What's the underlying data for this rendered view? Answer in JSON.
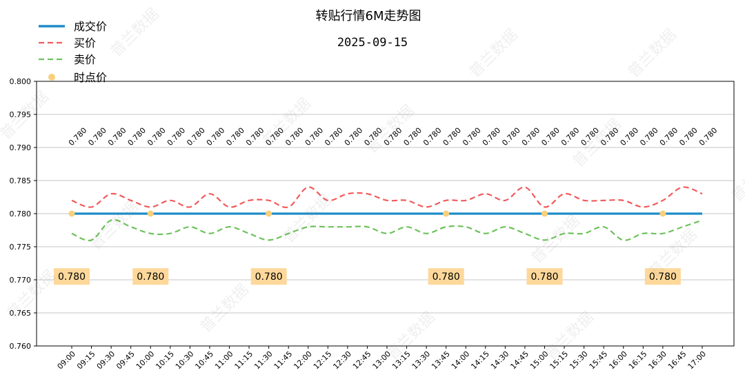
{
  "chart_data": {
    "type": "line",
    "title": "转贴行情6M走势图",
    "subtitle": "2025-09-15",
    "ylim": [
      0.76,
      0.8
    ],
    "yticks": [
      "0.760",
      "0.765",
      "0.770",
      "0.775",
      "0.780",
      "0.785",
      "0.790",
      "0.795",
      "0.800"
    ],
    "grid": true,
    "legend_position": "top-left",
    "categories": [
      "09:00",
      "09:15",
      "09:30",
      "09:45",
      "10:00",
      "10:15",
      "10:30",
      "10:45",
      "11:00",
      "11:15",
      "11:30",
      "11:45",
      "12:00",
      "12:15",
      "12:30",
      "12:45",
      "13:00",
      "13:15",
      "13:30",
      "13:45",
      "14:00",
      "14:15",
      "14:30",
      "14:45",
      "15:00",
      "15:15",
      "15:30",
      "15:45",
      "16:00",
      "16:15",
      "16:30",
      "16:45",
      "17:00"
    ],
    "series": [
      {
        "name": "成交价",
        "style": "solid",
        "color": "#1f8cc8",
        "values": [
          0.78,
          0.78,
          0.78,
          0.78,
          0.78,
          0.78,
          0.78,
          0.78,
          0.78,
          0.78,
          0.78,
          0.78,
          0.78,
          0.78,
          0.78,
          0.78,
          0.78,
          0.78,
          0.78,
          0.78,
          0.78,
          0.78,
          0.78,
          0.78,
          0.78,
          0.78,
          0.78,
          0.78,
          0.78,
          0.78,
          0.78,
          0.78,
          0.78
        ]
      },
      {
        "name": "买价",
        "style": "dashed",
        "color": "#f15a5a",
        "values": [
          0.782,
          0.781,
          0.783,
          0.782,
          0.781,
          0.782,
          0.781,
          0.783,
          0.781,
          0.782,
          0.782,
          0.781,
          0.784,
          0.782,
          0.783,
          0.783,
          0.782,
          0.782,
          0.781,
          0.782,
          0.782,
          0.783,
          0.782,
          0.784,
          0.781,
          0.783,
          0.782,
          0.782,
          0.782,
          0.781,
          0.782,
          0.784,
          0.783
        ]
      },
      {
        "name": "卖价",
        "style": "dashed",
        "color": "#6cc25a",
        "values": [
          0.777,
          0.776,
          0.779,
          0.778,
          0.777,
          0.777,
          0.778,
          0.777,
          0.778,
          0.777,
          0.776,
          0.777,
          0.778,
          0.778,
          0.778,
          0.778,
          0.777,
          0.778,
          0.777,
          0.778,
          0.778,
          0.777,
          0.778,
          0.777,
          0.776,
          0.777,
          0.777,
          0.778,
          0.776,
          0.777,
          0.777,
          0.778,
          0.779
        ]
      },
      {
        "name": "时点价",
        "style": "marker",
        "color": "#f8d07a",
        "points": [
          {
            "category": "09:00",
            "value": 0.78,
            "label": "0.780"
          },
          {
            "category": "10:00",
            "value": 0.78,
            "label": "0.780"
          },
          {
            "category": "11:30",
            "value": 0.78,
            "label": "0.780"
          },
          {
            "category": "13:45",
            "value": 0.78,
            "label": "0.780"
          },
          {
            "category": "15:00",
            "value": 0.78,
            "label": "0.780"
          },
          {
            "category": "16:30",
            "value": 0.78,
            "label": "0.780"
          }
        ]
      }
    ],
    "top_labels": [
      "0.780",
      "0.780",
      "0.780",
      "0.780",
      "0.780",
      "0.780",
      "0.780",
      "0.780",
      "0.780",
      "0.780",
      "0.780",
      "0.780",
      "0.780",
      "0.780",
      "0.780",
      "0.780",
      "0.780",
      "0.780",
      "0.780",
      "0.780",
      "0.780",
      "0.780",
      "0.780",
      "0.780",
      "0.780",
      "0.780",
      "0.780",
      "0.780",
      "0.780",
      "0.780",
      "0.780",
      "0.780",
      "0.780"
    ],
    "top_labels_level": 0.79,
    "box_label_level": 0.7705
  },
  "watermark": "普兰数据"
}
